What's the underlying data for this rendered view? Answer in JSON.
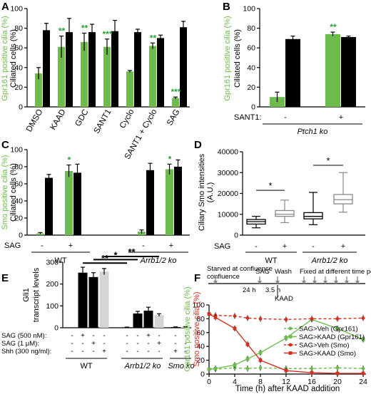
{
  "colors": {
    "green": "#6dbb4d",
    "black": "#000000",
    "grey": "#d5d5d5",
    "dark_green": "#2e9e3a",
    "red": "#d32f1f"
  },
  "panel_labels": [
    "A",
    "B",
    "C",
    "D",
    "E",
    "F"
  ],
  "chart_data": [
    {
      "id": "A",
      "type": "bar",
      "ylabel_green": "Gpr161 positive cilia (%)",
      "ylabel_black": "Ciliated cells (%)",
      "ylim": [
        0,
        100
      ],
      "yticks": [
        "0",
        "20",
        "40",
        "60",
        "80",
        "100"
      ],
      "categories": [
        "DMSO",
        "KAAD",
        "GDC",
        "SANT1",
        "Cyclo",
        "SANT1 + Cyclo",
        "SAG"
      ],
      "series": [
        {
          "values": [
            34,
            61,
            66,
            61,
            36,
            62,
            9
          ],
          "err": [
            6,
            11,
            9,
            8,
            1,
            3,
            1
          ],
          "color": "green"
        },
        {
          "values": [
            78,
            76,
            76,
            77,
            76,
            70,
            81
          ],
          "err": [
            7,
            14,
            8,
            11,
            3,
            3,
            6
          ],
          "color": "black"
        }
      ],
      "annotations": [
        "",
        "**",
        "**",
        "***",
        "",
        "**",
        "***"
      ]
    },
    {
      "id": "B",
      "type": "bar",
      "ylabel_green": "Gpr161 positive cilia (%)",
      "ylabel_black": "Ciliated cells (%)",
      "ylim": [
        0,
        100
      ],
      "yticks": [
        "0",
        "20",
        "40",
        "60",
        "80",
        "100"
      ],
      "row_label": "SANT1:",
      "categories": [
        "-",
        "+"
      ],
      "group_label": "Ptch1 ko",
      "series": [
        {
          "values": [
            10,
            74
          ],
          "err": [
            5,
            2
          ],
          "color": "green"
        },
        {
          "values": [
            69,
            71
          ],
          "err": [
            3,
            1
          ],
          "color": "black"
        }
      ],
      "annotations": [
        "",
        "**"
      ]
    },
    {
      "id": "C",
      "type": "bar",
      "ylabel_green": "Smo positive cilia (%)",
      "ylabel_black": "Ciliated cells (%)",
      "ylim": [
        0,
        100
      ],
      "yticks": [
        "0",
        "20",
        "40",
        "60",
        "80",
        "100"
      ],
      "row_label": "SAG",
      "categories": [
        "-",
        "+",
        "-",
        "+"
      ],
      "groups": [
        "WT",
        "Arrb1/2 ko"
      ],
      "series": [
        {
          "values": [
            2,
            75,
            4,
            77
          ],
          "err": [
            1,
            7,
            2,
            6
          ],
          "color": "green"
        },
        {
          "values": [
            67,
            73,
            76,
            80
          ],
          "err": [
            4,
            10,
            8,
            8
          ],
          "color": "black"
        }
      ],
      "annotations": [
        "",
        "*",
        "",
        "*"
      ]
    },
    {
      "id": "D",
      "type": "box",
      "ylabel": "Ciliary Smo intensities (A.U.)",
      "ylim": [
        0,
        40000
      ],
      "yticks": [
        "0",
        "10000",
        "20000",
        "30000",
        "40000"
      ],
      "row_label": "SAG",
      "categories": [
        "-",
        "+",
        "-",
        "+"
      ],
      "groups": [
        "WT",
        "Arrb1/2 ko"
      ],
      "boxes": [
        {
          "min": 3500,
          "q1": 5300,
          "median": 6500,
          "q3": 7500,
          "max": 9000
        },
        {
          "min": 6000,
          "q1": 9000,
          "median": 10000,
          "q3": 11800,
          "max": 16800
        },
        {
          "min": 5000,
          "q1": 7800,
          "median": 9000,
          "q3": 10800,
          "max": 20500
        },
        {
          "min": 11000,
          "q1": 15000,
          "median": 17000,
          "q3": 19500,
          "max": 30000
        }
      ],
      "annotations": [
        "*",
        "*"
      ]
    },
    {
      "id": "E",
      "type": "bar",
      "ylabel_title": "Gli1",
      "ylabel": "transcript levels",
      "ylim": [
        0,
        300
      ],
      "yticks": [
        "0",
        "100",
        "200",
        "300"
      ],
      "row_labels": [
        "SAG (500 nM):",
        "SAG (1 μM):",
        "Shh (300 ng/ml):"
      ],
      "condition_marks": [
        [
          "-",
          "+",
          "-",
          "-"
        ],
        [
          "-",
          "-",
          "+",
          "-"
        ],
        [
          "-",
          "-",
          "-",
          "+"
        ]
      ],
      "group_marks": [
        [
          "-",
          "+",
          "-",
          "-",
          "-",
          "-",
          "+",
          "-",
          "-",
          "-"
        ],
        [
          "-",
          "-",
          "+",
          "-",
          "-",
          "-",
          "-",
          "+",
          "-",
          "-"
        ],
        [
          "-",
          "-",
          "-",
          "+",
          "-",
          "-",
          "-",
          "-",
          "+",
          "-"
        ]
      ],
      "groups": [
        "WT",
        "Arrb1/2 ko",
        "Smo ko"
      ],
      "values": [
        0,
        252,
        232,
        257,
        2,
        65,
        78,
        58,
        3,
        3
      ],
      "err": [
        0,
        25,
        20,
        14,
        1,
        10,
        16,
        6,
        1,
        1
      ],
      "bar_colors": [
        "black",
        "black",
        "black",
        "grey",
        "black",
        "black",
        "black",
        "grey",
        "black",
        "grey"
      ],
      "annotations": [
        "**",
        "*",
        "**"
      ]
    },
    {
      "id": "F",
      "type": "line",
      "timeline": {
        "events": [
          "Starved at confluence",
          "SAG",
          "Wash",
          "Fixed at different time points"
        ],
        "durations": [
          "24 h",
          "3.5 h"
        ],
        "drug": "KAAD"
      },
      "ylabel_green": "Gpr161 positive cilia (%)",
      "ylabel_red": "Smo positive cilia (%)",
      "xlabel": "Time (h) after KAAD addition",
      "xlim": [
        0,
        24
      ],
      "ylim": [
        0,
        100
      ],
      "xticks": [
        "0",
        "4",
        "8",
        "12",
        "16",
        "20",
        "24"
      ],
      "yticks": [
        "0",
        "20",
        "40",
        "60",
        "80",
        "100"
      ],
      "x": [
        0,
        1,
        4,
        6,
        8,
        12,
        16,
        20,
        24
      ],
      "series": [
        {
          "name": "SAG>Veh (Gpr161)",
          "values": [
            7,
            7,
            9,
            8,
            9,
            8,
            8,
            9,
            8
          ],
          "color": "green",
          "dashed": true,
          "marker": "circle"
        },
        {
          "name": "SAG>KAAD (Gpr161)",
          "values": [
            7,
            8,
            13,
            22,
            31,
            52,
            79,
            66,
            50
          ],
          "color": "green",
          "dashed": false,
          "marker": "square"
        },
        {
          "name": "SAG>Veh (Smo)",
          "values": [
            87,
            85,
            84,
            81,
            80,
            79,
            80,
            80,
            81
          ],
          "color": "red",
          "dashed": true,
          "marker": "circle"
        },
        {
          "name": "SAG>KAAD (Smo)",
          "values": [
            87,
            82,
            66,
            43,
            20,
            5,
            2,
            1,
            1
          ],
          "color": "red",
          "dashed": false,
          "marker": "square"
        }
      ]
    }
  ]
}
